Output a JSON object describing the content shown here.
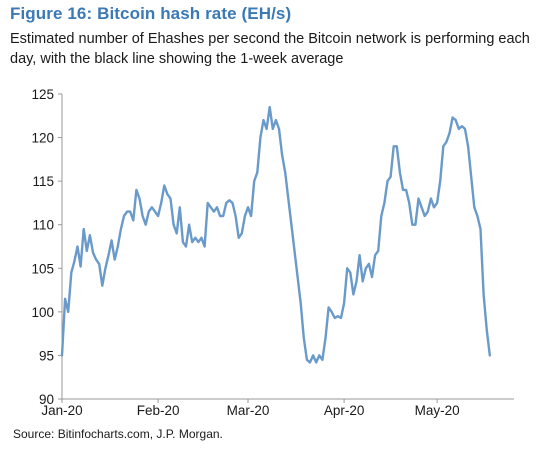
{
  "header": {
    "title": "Figure 16: Bitcoin hash rate (EH/s)",
    "subtitle": "Estimated number of Ehashes per second the Bitcoin network is performing each day, with the black line showing the 1-week average"
  },
  "footer": {
    "source": "Source: Bitinfocharts.com, J.P. Morgan."
  },
  "colors": {
    "line": "#6a9ac9",
    "title": "#3a79b6",
    "axis": "#999999"
  },
  "chart_data": {
    "type": "line",
    "ylim": [
      90,
      125
    ],
    "y_ticks": [
      90,
      95,
      100,
      105,
      110,
      115,
      120,
      125
    ],
    "x_ticks": [
      {
        "label": "Jan-20",
        "day": 0
      },
      {
        "label": "Feb-20",
        "day": 31
      },
      {
        "label": "Mar-20",
        "day": 60
      },
      {
        "label": "Apr-20",
        "day": 91
      },
      {
        "label": "May-20",
        "day": 121
      }
    ],
    "grid": false,
    "series": [
      {
        "values": [
          95.0,
          101.5,
          100.0,
          104.5,
          105.8,
          107.5,
          105.2,
          109.5,
          107.0,
          108.8,
          106.8,
          106.0,
          105.5,
          103.0,
          105.0,
          106.5,
          108.2,
          106.0,
          107.5,
          109.5,
          111.0,
          111.5,
          111.5,
          110.5,
          114.0,
          113.0,
          111.0,
          110.0,
          111.5,
          112.0,
          111.5,
          111.0,
          112.5,
          114.5,
          113.5,
          113.0,
          110.0,
          109.0,
          112.0,
          108.0,
          107.5,
          110.0,
          108.0,
          108.5,
          108.0,
          108.5,
          107.5,
          112.5,
          112.0,
          111.5,
          112.0,
          111.0,
          111.0,
          112.5,
          112.8,
          112.5,
          111.0,
          108.5,
          109.0,
          111.0,
          112.0,
          111.0,
          115.0,
          116.0,
          120.0,
          122.0,
          121.0,
          123.5,
          121.0,
          122.0,
          121.0,
          118.0,
          116.0,
          113.0,
          110.0,
          107.0,
          104.0,
          101.0,
          97.0,
          94.5,
          94.2,
          95.0,
          94.2,
          95.0,
          94.5,
          97.0,
          100.5,
          100.0,
          99.3,
          99.5,
          99.3,
          101.0,
          105.0,
          104.5,
          102.0,
          103.5,
          106.5,
          103.5,
          105.0,
          105.5,
          104.0,
          106.5,
          107.0,
          111.0,
          112.5,
          115.0,
          115.5,
          119.0,
          119.0,
          116.0,
          114.0,
          114.0,
          112.5,
          110.0,
          110.0,
          113.0,
          112.0,
          111.0,
          111.5,
          113.0,
          112.0,
          112.5,
          115.0,
          119.0,
          119.5,
          120.5,
          122.3,
          122.0,
          121.0,
          121.3,
          121.0,
          119.0,
          115.5,
          112.0,
          111.0,
          109.5,
          102.0,
          98.0,
          95.0
        ]
      }
    ]
  }
}
